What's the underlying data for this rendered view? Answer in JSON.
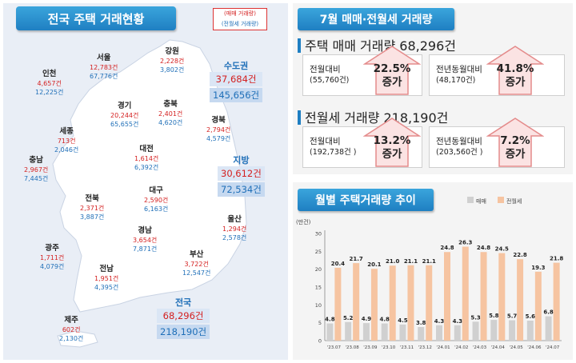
{
  "left": {
    "title": "전국 주택 거래현황",
    "legend": {
      "sale": "(매매 거래량)",
      "rent": "(전월세 거래량)"
    },
    "regions": [
      {
        "key": "seoul",
        "name": "서울",
        "sale": "12,783건",
        "rent": "67,776건"
      },
      {
        "key": "incheon",
        "name": "인천",
        "sale": "4,657건",
        "rent": "12,225건"
      },
      {
        "key": "gangwon",
        "name": "강원",
        "sale": "2,228건",
        "rent": "3,802건"
      },
      {
        "key": "gyeonggi",
        "name": "경기",
        "sale": "20,244건",
        "rent": "65,655건"
      },
      {
        "key": "chungbuk",
        "name": "충북",
        "sale": "2,401건",
        "rent": "4,620건"
      },
      {
        "key": "gyeongbuk",
        "name": "경북",
        "sale": "2,794건",
        "rent": "4,579건"
      },
      {
        "key": "sejong",
        "name": "세종",
        "sale": "713건",
        "rent": "2,046건"
      },
      {
        "key": "daejeon",
        "name": "대전",
        "sale": "1,614건",
        "rent": "6,392건"
      },
      {
        "key": "chungnam",
        "name": "충남",
        "sale": "2,967건",
        "rent": "7,445건"
      },
      {
        "key": "daegu",
        "name": "대구",
        "sale": "2,590건",
        "rent": "6,163건"
      },
      {
        "key": "jeonbuk",
        "name": "전북",
        "sale": "2,371건",
        "rent": "3,887건"
      },
      {
        "key": "ulsan",
        "name": "울산",
        "sale": "1,294건",
        "rent": "2,578건"
      },
      {
        "key": "gyeongnam",
        "name": "경남",
        "sale": "3,654건",
        "rent": "7,871건"
      },
      {
        "key": "gwangju",
        "name": "광주",
        "sale": "1,711건",
        "rent": "4,079건"
      },
      {
        "key": "busan",
        "name": "부산",
        "sale": "3,722건",
        "rent": "12,547건"
      },
      {
        "key": "jeonnam",
        "name": "전남",
        "sale": "1,951건",
        "rent": "4,395건"
      },
      {
        "key": "jeju",
        "name": "제주",
        "sale": "602건",
        "rent": "2,130건"
      }
    ],
    "capital": {
      "name": "수도권",
      "sale": "37,684건",
      "rent": "145,656건"
    },
    "provinces": {
      "name": "지방",
      "sale": "30,612건",
      "rent": "72,534건"
    },
    "nation": {
      "name": "전국",
      "sale": "68,296건",
      "rent": "218,190건"
    }
  },
  "summary": {
    "title": "7월 매매·전월세 거래량",
    "sale_heading": "주택 매매 거래량 68,296건",
    "rent_heading": "전월세 거래량 218,190건",
    "cards": [
      {
        "label": "전월대비",
        "base": "(55,760건)",
        "pct": "22.5%",
        "dir": "증가"
      },
      {
        "label": "전년동월대비",
        "base": "(48,170건)",
        "pct": "41.8%",
        "dir": "증가"
      },
      {
        "label": "전월대비",
        "base": "(192,738건 )",
        "pct": "13.2%",
        "dir": "증가"
      },
      {
        "label": "전년동월대비",
        "base": "(203,560건 )",
        "pct": "7.2%",
        "dir": "증가"
      }
    ]
  },
  "trend": {
    "title": "월별 주택거래량 추이",
    "unit": "(만건)"
  },
  "colors": {
    "sale": "#d0d0d0",
    "rent": "#f6c4a1",
    "accent": "#1f7fc2",
    "red": "#d42020",
    "blue": "#1f6fb8"
  },
  "chart_data": {
    "type": "bar",
    "categories": [
      "'23.07",
      "'23.08",
      "'23.09",
      "'23.10",
      "'23.11",
      "'23.12",
      "'24.01",
      "'24.02",
      "'24.03",
      "'24.04",
      "'24.05",
      "'24.06",
      "'24.07"
    ],
    "series": [
      {
        "name": "매매",
        "values": [
          4.8,
          5.2,
          4.9,
          4.8,
          4.5,
          3.8,
          4.3,
          4.3,
          5.3,
          5.8,
          5.7,
          5.6,
          6.8
        ]
      },
      {
        "name": "전월세",
        "values": [
          20.4,
          21.7,
          20.1,
          21.0,
          21.1,
          21.1,
          24.8,
          26.3,
          24.8,
          24.5,
          22.8,
          19.3,
          21.8
        ]
      }
    ],
    "ylabel": "(만건)",
    "ylim": [
      0,
      30
    ],
    "yticks": [
      0,
      5,
      10,
      15,
      20,
      25,
      30
    ],
    "legend": "top",
    "grid": false
  }
}
